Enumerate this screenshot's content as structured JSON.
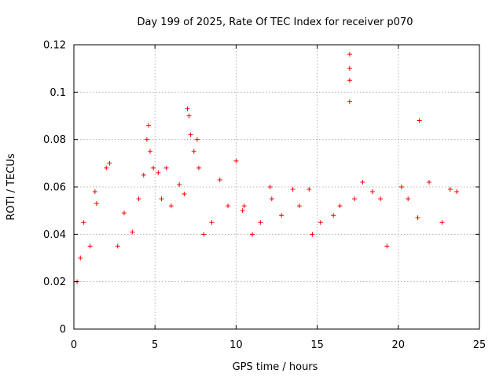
{
  "chart_data": {
    "type": "scatter",
    "title": "Day 199 of 2025, Rate Of TEC Index for receiver p070",
    "xlabel": "GPS time / hours",
    "ylabel": "ROTI / TECUs",
    "xlim": [
      0,
      25
    ],
    "ylim": [
      0,
      0.12
    ],
    "xticks": [
      "0",
      "5",
      "10",
      "15",
      "20",
      "25"
    ],
    "yticks": [
      "0",
      "0.02",
      "0.04",
      "0.06",
      "0.08",
      "0.1",
      "0.12"
    ],
    "grid": true,
    "marker": "+",
    "color": "#ff0000",
    "series": [
      {
        "name": "",
        "x": [
          0.2,
          0.4,
          0.6,
          1.0,
          1.3,
          1.4,
          2.0,
          2.2,
          2.7,
          3.1,
          3.6,
          4.0,
          4.3,
          4.5,
          4.6,
          4.7,
          4.9,
          5.2,
          5.4,
          5.7,
          6.0,
          6.5,
          6.8,
          7.0,
          7.1,
          7.2,
          7.4,
          7.6,
          7.7,
          8.0,
          8.5,
          9.0,
          9.5,
          10.0,
          10.4,
          10.5,
          11.0,
          11.5,
          12.1,
          12.2,
          12.8,
          13.5,
          13.9,
          14.5,
          14.7,
          15.2,
          16.0,
          16.4,
          17.0,
          17.0,
          17.0,
          17.0,
          17.3,
          17.8,
          18.4,
          18.9,
          19.3,
          20.2,
          20.6,
          21.2,
          21.3,
          21.9,
          22.7,
          23.2,
          23.6
        ],
        "y": [
          0.02,
          0.03,
          0.045,
          0.035,
          0.058,
          0.053,
          0.068,
          0.07,
          0.035,
          0.049,
          0.041,
          0.055,
          0.065,
          0.08,
          0.086,
          0.075,
          0.068,
          0.066,
          0.055,
          0.068,
          0.052,
          0.061,
          0.057,
          0.093,
          0.09,
          0.082,
          0.075,
          0.08,
          0.068,
          0.04,
          0.045,
          0.063,
          0.052,
          0.071,
          0.05,
          0.052,
          0.04,
          0.045,
          0.06,
          0.055,
          0.048,
          0.059,
          0.052,
          0.059,
          0.04,
          0.045,
          0.048,
          0.052,
          0.116,
          0.11,
          0.105,
          0.096,
          0.055,
          0.062,
          0.058,
          0.055,
          0.035,
          0.06,
          0.055,
          0.047,
          0.088,
          0.062,
          0.045,
          0.059,
          0.058
        ]
      }
    ]
  }
}
